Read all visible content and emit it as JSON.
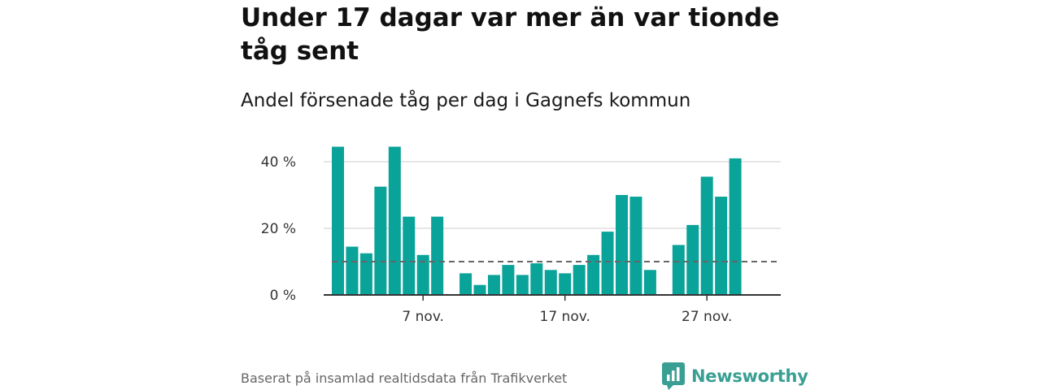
{
  "title": "Under 17 dagar var mer än var tionde tåg sent",
  "subtitle": "Andel försenade tåg per dag i Gagnefs kommun",
  "footer": "Baserat på insamlad realtidsdata från Trafikverket",
  "brand": {
    "name": "Newsworthy",
    "icon": "newsworthy-logo-icon",
    "color": "#3a9f93"
  },
  "colors": {
    "bar": "#0aa39a",
    "reference_line": "#666666",
    "grid": "#dddddd",
    "axis": "#333333"
  },
  "chart_data": {
    "type": "bar",
    "title": "Under 17 dagar var mer än var tionde tåg sent",
    "subtitle": "Andel försenade tåg per dag i Gagnefs kommun",
    "xlabel": "",
    "ylabel": "",
    "categories": [
      1,
      2,
      3,
      4,
      5,
      6,
      7,
      8,
      9,
      10,
      11,
      12,
      13,
      14,
      15,
      16,
      17,
      18,
      19,
      20,
      21,
      22,
      23,
      24,
      25,
      26,
      27,
      28,
      29,
      30
    ],
    "values": [
      44.5,
      14.5,
      12.5,
      32.5,
      44.5,
      23.5,
      12,
      23.5,
      null,
      6.5,
      3,
      6,
      9,
      6,
      9.5,
      7.5,
      6.5,
      9,
      12,
      19,
      30,
      29.5,
      7.5,
      null,
      15,
      21,
      35.5,
      29.5,
      41,
      null
    ],
    "x_ticks": [
      {
        "at": 7,
        "label": "7 nov."
      },
      {
        "at": 17,
        "label": "17 nov."
      },
      {
        "at": 27,
        "label": "27 nov."
      }
    ],
    "y_ticks": [
      {
        "value": 0,
        "label": "0 %"
      },
      {
        "value": 20,
        "label": "20 %"
      },
      {
        "value": 40,
        "label": "40 %"
      }
    ],
    "ylim": [
      0,
      46
    ],
    "reference_line": 10,
    "grid": true,
    "legend": "none"
  }
}
